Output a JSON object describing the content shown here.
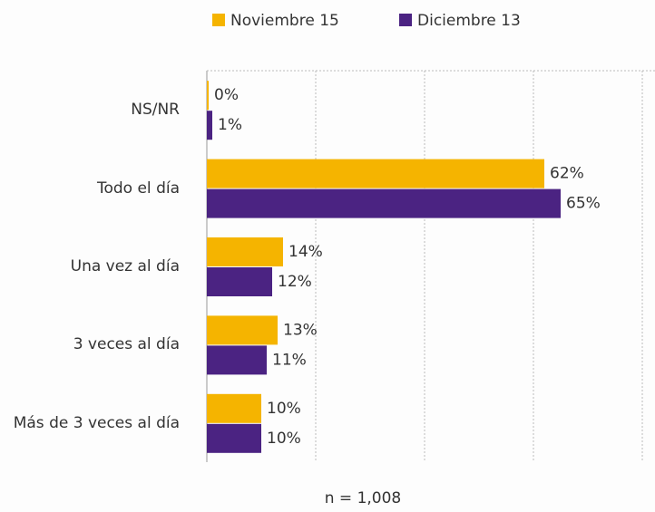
{
  "chart_data": {
    "type": "bar",
    "orientation": "horizontal",
    "categories": [
      "NS/NR",
      "Todo el día",
      "Una vez al día",
      "3 veces al día",
      "Más de 3 veces al día"
    ],
    "series": [
      {
        "name": "Noviembre 15",
        "color": "#f5b400",
        "values": [
          0,
          62,
          14,
          13,
          10
        ],
        "value_labels": [
          "0%",
          "62%",
          "14%",
          "13%",
          "10%"
        ]
      },
      {
        "name": "Diciembre 13",
        "color": "#4b2382",
        "values": [
          1,
          65,
          12,
          11,
          10
        ],
        "value_labels": [
          "1%",
          "65%",
          "12%",
          "11%",
          "10%"
        ]
      }
    ],
    "xlim": [
      0,
      80
    ],
    "xticks": [
      0,
      20,
      40,
      60,
      80
    ],
    "grid": true,
    "annotation": "n = 1,008"
  }
}
